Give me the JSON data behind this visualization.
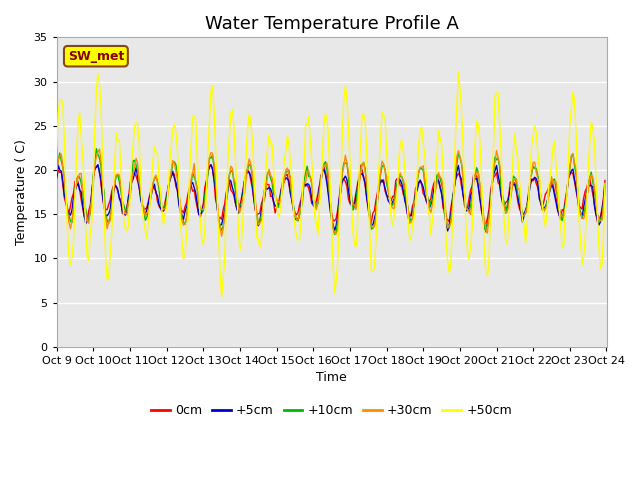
{
  "title": "Water Temperature Profile A",
  "xlabel": "Time",
  "ylabel": "Temperature ( C)",
  "ylim": [
    0,
    35
  ],
  "yticks": [
    0,
    5,
    10,
    15,
    20,
    25,
    30,
    35
  ],
  "annotation_text": "SW_met",
  "annotation_box_color": "#FFFF00",
  "annotation_text_color": "#8B0000",
  "annotation_border_color": "#8B4513",
  "series_colors": {
    "0cm": "#FF0000",
    "+5cm": "#0000CC",
    "+10cm": "#00BB00",
    "+30cm": "#FF8C00",
    "+50cm": "#FFFF00"
  },
  "background_inner": "#E8E8E8",
  "background_outer": "#FFFFFF",
  "grid_color": "#FFFFFF",
  "title_fontsize": 13,
  "axis_label_fontsize": 9,
  "tick_label_fontsize": 8,
  "legend_fontsize": 9
}
